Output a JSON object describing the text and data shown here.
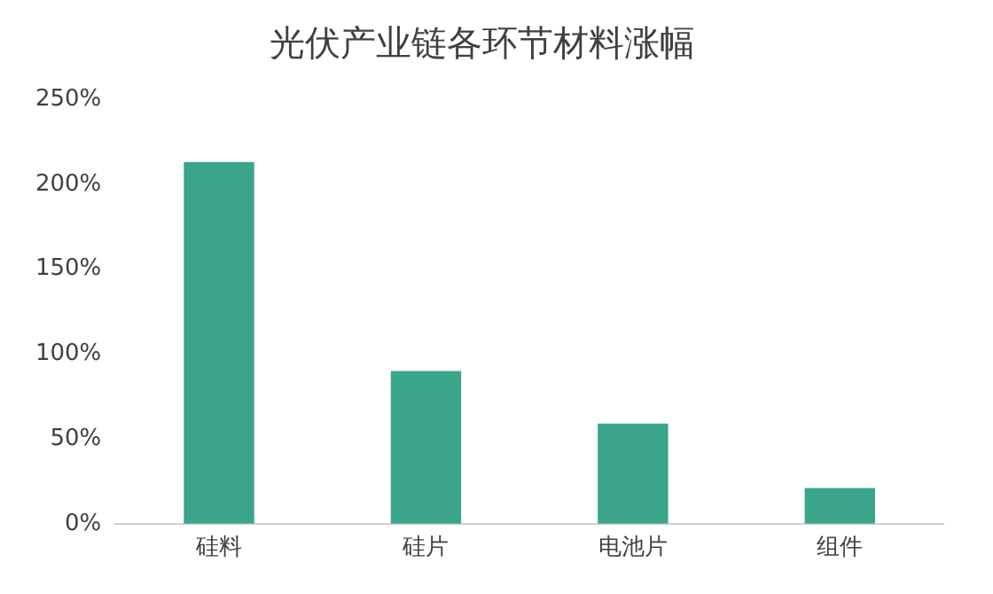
{
  "chart_data": {
    "type": "bar",
    "title": "光伏产业链各环节材料涨幅",
    "categories": [
      "硅料",
      "硅片",
      "电池片",
      "组件"
    ],
    "values": [
      213,
      90,
      59,
      21
    ],
    "color": "#3aa58a",
    "ylim": [
      0,
      250
    ],
    "yticks": [
      {
        "value": 0,
        "label": "0%"
      },
      {
        "value": 50,
        "label": "50%"
      },
      {
        "value": 100,
        "label": "100%"
      },
      {
        "value": 150,
        "label": "150%"
      },
      {
        "value": 200,
        "label": "200%"
      },
      {
        "value": 250,
        "label": "250%"
      }
    ],
    "grid": false
  }
}
